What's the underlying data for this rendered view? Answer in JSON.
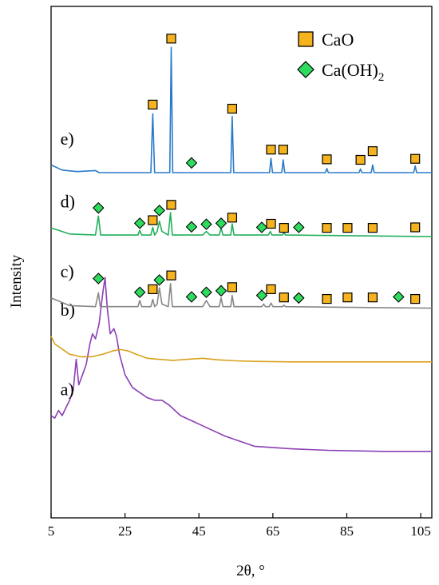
{
  "chart_data": {
    "type": "line",
    "xlabel": "2θ, °",
    "ylabel": "Intensity",
    "xlim": [
      5,
      108
    ],
    "x_ticks": [
      "5",
      "25",
      "45",
      "65",
      "85",
      "105"
    ],
    "y_ticks_visible": false,
    "grid": false,
    "legend": {
      "placement": "top-right",
      "entries": [
        {
          "marker": "square",
          "label": "CaO",
          "color": "#F5B31E"
        },
        {
          "marker": "diamond",
          "label": "Ca(OH)",
          "sub": "2",
          "color": "#2EDB5E"
        }
      ]
    },
    "series": [
      {
        "label": "a)",
        "color": "#8A3FB5",
        "baseline": 0.13,
        "points": [
          [
            5,
            0.2
          ],
          [
            6,
            0.195
          ],
          [
            7,
            0.21
          ],
          [
            8,
            0.2
          ],
          [
            9,
            0.215
          ],
          [
            10,
            0.23
          ],
          [
            11,
            0.25
          ],
          [
            11.8,
            0.31
          ],
          [
            12.5,
            0.26
          ],
          [
            13.5,
            0.28
          ],
          [
            14.5,
            0.3
          ],
          [
            15.5,
            0.34
          ],
          [
            16.2,
            0.36
          ],
          [
            17,
            0.35
          ],
          [
            18,
            0.38
          ],
          [
            19,
            0.44
          ],
          [
            19.6,
            0.47
          ],
          [
            20.2,
            0.41
          ],
          [
            21,
            0.36
          ],
          [
            22,
            0.37
          ],
          [
            22.7,
            0.355
          ],
          [
            23.5,
            0.32
          ],
          [
            25,
            0.28
          ],
          [
            27,
            0.255
          ],
          [
            29,
            0.245
          ],
          [
            31,
            0.235
          ],
          [
            33,
            0.23
          ],
          [
            35,
            0.23
          ],
          [
            37,
            0.22
          ],
          [
            40,
            0.2
          ],
          [
            43,
            0.19
          ],
          [
            46,
            0.18
          ],
          [
            49,
            0.17
          ],
          [
            52,
            0.16
          ],
          [
            56,
            0.15
          ],
          [
            60,
            0.14
          ],
          [
            70,
            0.135
          ],
          [
            80,
            0.132
          ],
          [
            95,
            0.13
          ],
          [
            108,
            0.13
          ]
        ]
      },
      {
        "label": "b)",
        "color": "#D9A11C",
        "baseline": 0.305,
        "points": [
          [
            5,
            0.355
          ],
          [
            6,
            0.34
          ],
          [
            8,
            0.33
          ],
          [
            10,
            0.32
          ],
          [
            13,
            0.315
          ],
          [
            16,
            0.315
          ],
          [
            19,
            0.32
          ],
          [
            22,
            0.327
          ],
          [
            24,
            0.329
          ],
          [
            26,
            0.326
          ],
          [
            28,
            0.32
          ],
          [
            31,
            0.312
          ],
          [
            34,
            0.31
          ],
          [
            38,
            0.308
          ],
          [
            42,
            0.31
          ],
          [
            46,
            0.312
          ],
          [
            50,
            0.309
          ],
          [
            55,
            0.307
          ],
          [
            60,
            0.306
          ],
          [
            70,
            0.305
          ],
          [
            85,
            0.305
          ],
          [
            108,
            0.305
          ]
        ]
      },
      {
        "label": "c)",
        "color": "#878787",
        "baseline": 0.41,
        "points": [
          [
            5,
            0.43
          ],
          [
            10,
            0.415
          ],
          [
            17,
            0.413
          ],
          [
            17.8,
            0.44
          ],
          [
            18.3,
            0.413
          ],
          [
            28.5,
            0.413
          ],
          [
            29,
            0.425
          ],
          [
            29.5,
            0.413
          ],
          [
            32,
            0.413
          ],
          [
            32.5,
            0.427
          ],
          [
            33,
            0.413
          ],
          [
            33.7,
            0.418
          ],
          [
            34.3,
            0.45
          ],
          [
            35,
            0.418
          ],
          [
            36.7,
            0.413
          ],
          [
            37.3,
            0.458
          ],
          [
            37.8,
            0.413
          ],
          [
            46,
            0.413
          ],
          [
            47,
            0.425
          ],
          [
            48,
            0.413
          ],
          [
            50.5,
            0.413
          ],
          [
            51,
            0.43
          ],
          [
            51.5,
            0.413
          ],
          [
            53.6,
            0.413
          ],
          [
            54,
            0.435
          ],
          [
            54.5,
            0.413
          ],
          [
            62,
            0.413
          ],
          [
            62.5,
            0.418
          ],
          [
            63,
            0.413
          ],
          [
            64,
            0.413
          ],
          [
            64.5,
            0.42
          ],
          [
            65,
            0.413
          ],
          [
            67.6,
            0.413
          ],
          [
            68,
            0.416
          ],
          [
            68.4,
            0.413
          ],
          [
            108,
            0.41
          ]
        ]
      },
      {
        "label": "d)",
        "color": "#21B05A",
        "baseline": 0.55,
        "points": [
          [
            5,
            0.567
          ],
          [
            10,
            0.555
          ],
          [
            17,
            0.553
          ],
          [
            17.8,
            0.59
          ],
          [
            18.4,
            0.553
          ],
          [
            28.5,
            0.553
          ],
          [
            29,
            0.562
          ],
          [
            29.5,
            0.553
          ],
          [
            32,
            0.553
          ],
          [
            32.5,
            0.568
          ],
          [
            33,
            0.553
          ],
          [
            33.7,
            0.56
          ],
          [
            34.3,
            0.58
          ],
          [
            35,
            0.56
          ],
          [
            36.7,
            0.553
          ],
          [
            37.3,
            0.597
          ],
          [
            37.8,
            0.553
          ],
          [
            46,
            0.553
          ],
          [
            47,
            0.56
          ],
          [
            48,
            0.553
          ],
          [
            50.5,
            0.553
          ],
          [
            51,
            0.567
          ],
          [
            51.5,
            0.553
          ],
          [
            53.6,
            0.553
          ],
          [
            54,
            0.575
          ],
          [
            54.5,
            0.553
          ],
          [
            63.8,
            0.553
          ],
          [
            64.3,
            0.56
          ],
          [
            64.8,
            0.553
          ],
          [
            67.6,
            0.553
          ],
          [
            68,
            0.558
          ],
          [
            68.4,
            0.553
          ],
          [
            108,
            0.55
          ]
        ]
      },
      {
        "label": "e)",
        "color": "#2A7AC9",
        "baseline": 0.675,
        "points": [
          [
            5,
            0.69
          ],
          [
            8,
            0.68
          ],
          [
            12,
            0.677
          ],
          [
            17,
            0.679
          ],
          [
            18,
            0.675
          ],
          [
            32,
            0.675
          ],
          [
            32.5,
            0.79
          ],
          [
            33,
            0.675
          ],
          [
            37.1,
            0.675
          ],
          [
            37.5,
            0.92
          ],
          [
            37.9,
            0.675
          ],
          [
            53.6,
            0.675
          ],
          [
            54,
            0.785
          ],
          [
            54.4,
            0.675
          ],
          [
            64.1,
            0.675
          ],
          [
            64.5,
            0.703
          ],
          [
            64.9,
            0.675
          ],
          [
            67.4,
            0.675
          ],
          [
            67.8,
            0.7
          ],
          [
            68.2,
            0.675
          ],
          [
            79.2,
            0.675
          ],
          [
            79.6,
            0.683
          ],
          [
            80,
            0.675
          ],
          [
            88.3,
            0.675
          ],
          [
            88.7,
            0.682
          ],
          [
            89.1,
            0.675
          ],
          [
            91.6,
            0.675
          ],
          [
            92,
            0.69
          ],
          [
            92.4,
            0.675
          ],
          [
            103.1,
            0.675
          ],
          [
            103.5,
            0.688
          ],
          [
            103.9,
            0.675
          ],
          [
            108,
            0.675
          ]
        ]
      }
    ],
    "markers": [
      {
        "series": "e)",
        "type": "square",
        "x": [
          32.5,
          37.5,
          54,
          64.5,
          67.8,
          79.6,
          88.7,
          92,
          103.5
        ],
        "y": [
          0.808,
          0.937,
          0.8,
          0.72,
          0.72,
          0.701,
          0.7,
          0.717,
          0.702
        ]
      },
      {
        "series": "e)",
        "type": "diamond",
        "x": [
          43
        ],
        "y": [
          0.694
        ]
      },
      {
        "series": "d)",
        "type": "square",
        "x": [
          32.5,
          37.5,
          54,
          64.5,
          68,
          79.6,
          85.2,
          92,
          103.5
        ],
        "y": [
          0.582,
          0.612,
          0.587,
          0.575,
          0.567,
          0.567,
          0.567,
          0.567,
          0.568
        ]
      },
      {
        "series": "d)",
        "type": "diamond",
        "x": [
          17.8,
          29,
          34.3,
          43,
          47,
          51,
          62,
          72
        ],
        "y": [
          0.606,
          0.576,
          0.601,
          0.569,
          0.574,
          0.576,
          0.568,
          0.568
        ]
      },
      {
        "series": "c)",
        "type": "square",
        "x": [
          32.5,
          37.5,
          54,
          64.5,
          68,
          79.6,
          85.2,
          92,
          103.5
        ],
        "y": [
          0.447,
          0.474,
          0.451,
          0.447,
          0.431,
          0.428,
          0.431,
          0.431,
          0.428
        ]
      },
      {
        "series": "c)",
        "type": "diamond",
        "x": [
          17.8,
          29,
          34.3,
          43,
          47,
          51,
          62,
          72,
          99
        ],
        "y": [
          0.468,
          0.441,
          0.465,
          0.432,
          0.441,
          0.444,
          0.435,
          0.43,
          0.432
        ]
      }
    ]
  }
}
